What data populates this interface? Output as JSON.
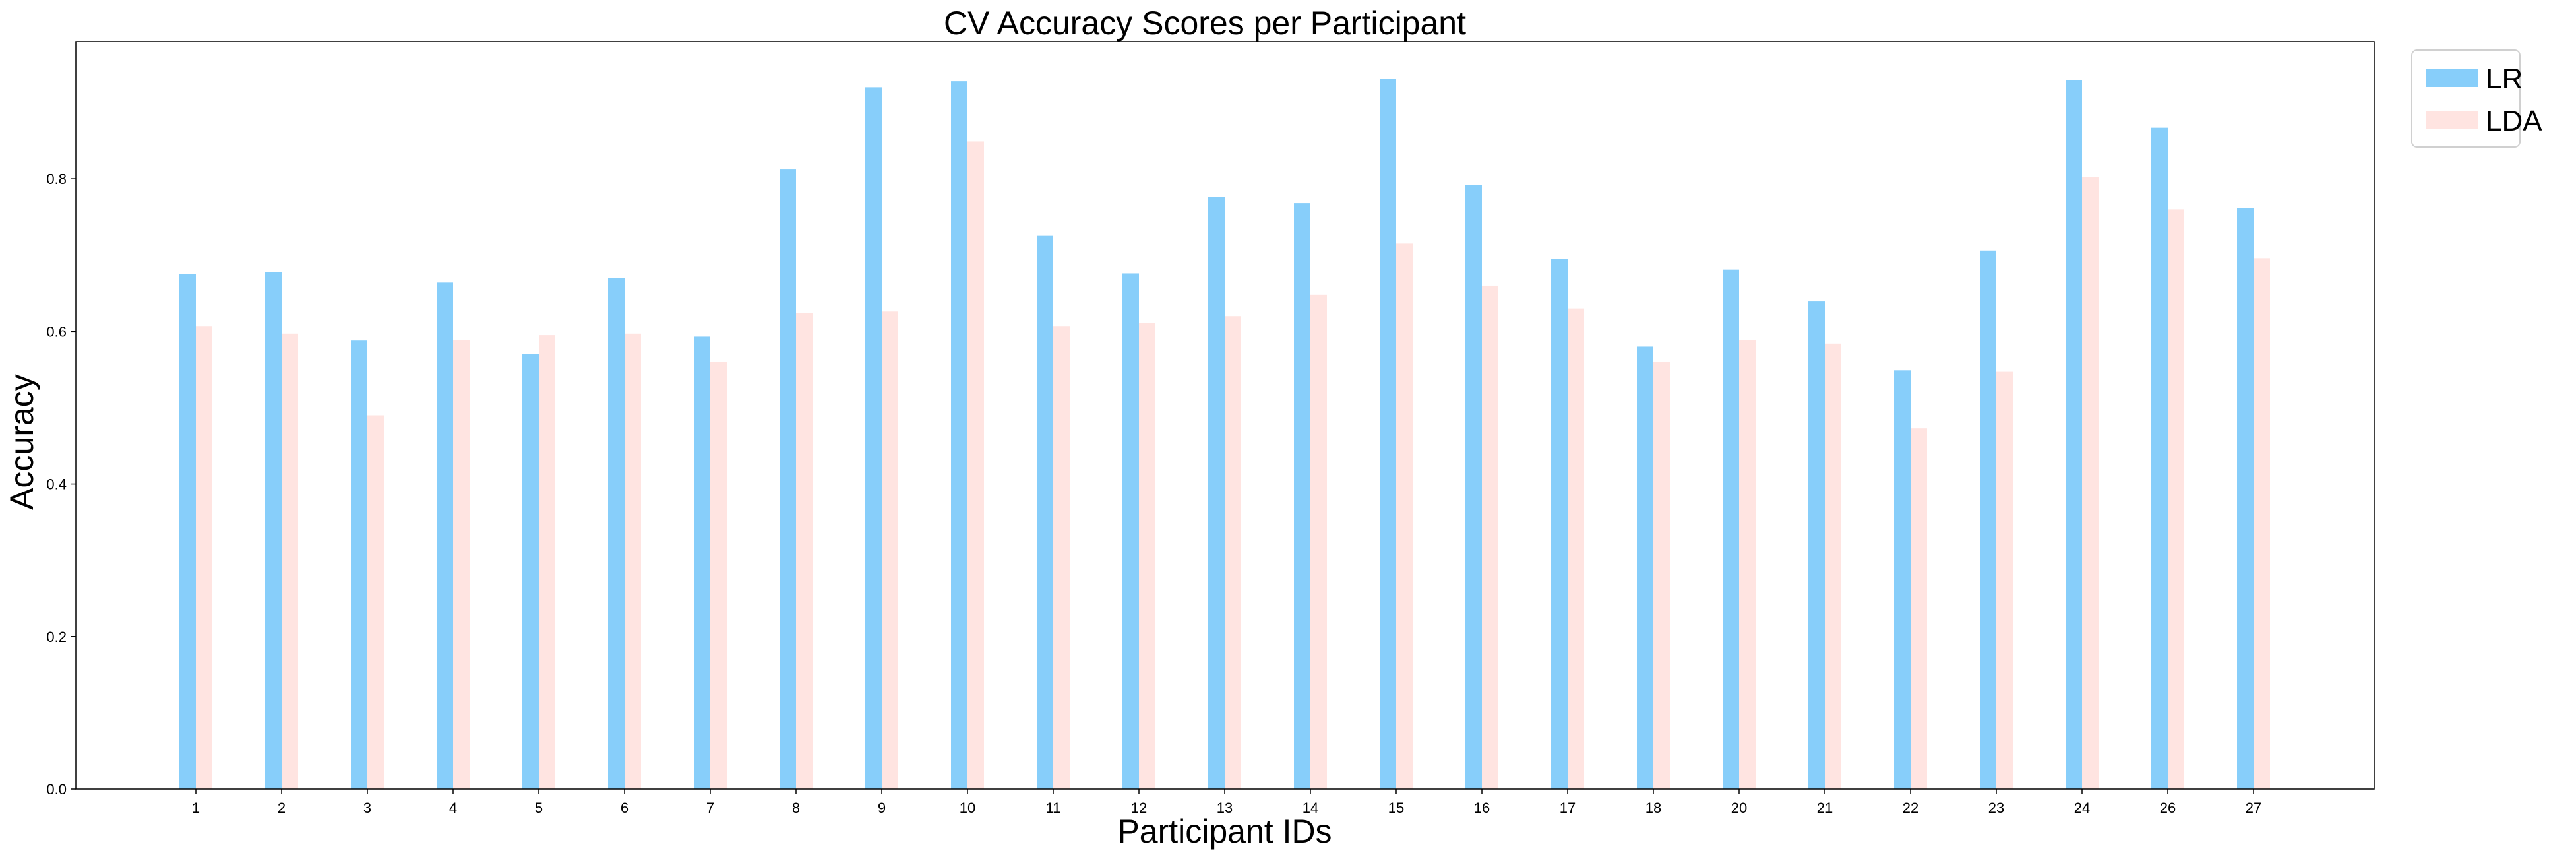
{
  "chart_data": {
    "type": "bar",
    "title": "CV Accuracy Scores per Participant",
    "xlabel": "Participant IDs",
    "ylabel": "Accuracy",
    "categories": [
      "1",
      "2",
      "3",
      "4",
      "5",
      "6",
      "7",
      "8",
      "9",
      "10",
      "11",
      "12",
      "13",
      "14",
      "15",
      "16",
      "17",
      "18",
      "20",
      "21",
      "22",
      "23",
      "24",
      "26",
      "27"
    ],
    "series": [
      {
        "name": "LR",
        "color": "#87CEFA",
        "values": [
          0.675,
          0.678,
          0.588,
          0.664,
          0.57,
          0.67,
          0.593,
          0.813,
          0.92,
          0.928,
          0.726,
          0.676,
          0.776,
          0.768,
          0.931,
          0.792,
          0.695,
          0.58,
          0.681,
          0.64,
          0.549,
          0.706,
          0.929,
          0.867,
          0.762
        ]
      },
      {
        "name": "LDA",
        "color": "#FFE4E1",
        "values": [
          0.607,
          0.597,
          0.49,
          0.589,
          0.595,
          0.597,
          0.56,
          0.624,
          0.626,
          0.849,
          0.607,
          0.611,
          0.62,
          0.648,
          0.715,
          0.66,
          0.63,
          0.56,
          0.589,
          0.584,
          0.473,
          0.547,
          0.802,
          0.76,
          0.696
        ]
      }
    ],
    "ylim": [
      0,
      0.98
    ],
    "yticks": [
      "0.0",
      "0.2",
      "0.4",
      "0.6",
      "0.8"
    ],
    "grid": false,
    "legend_position": "upper-right-outside"
  }
}
